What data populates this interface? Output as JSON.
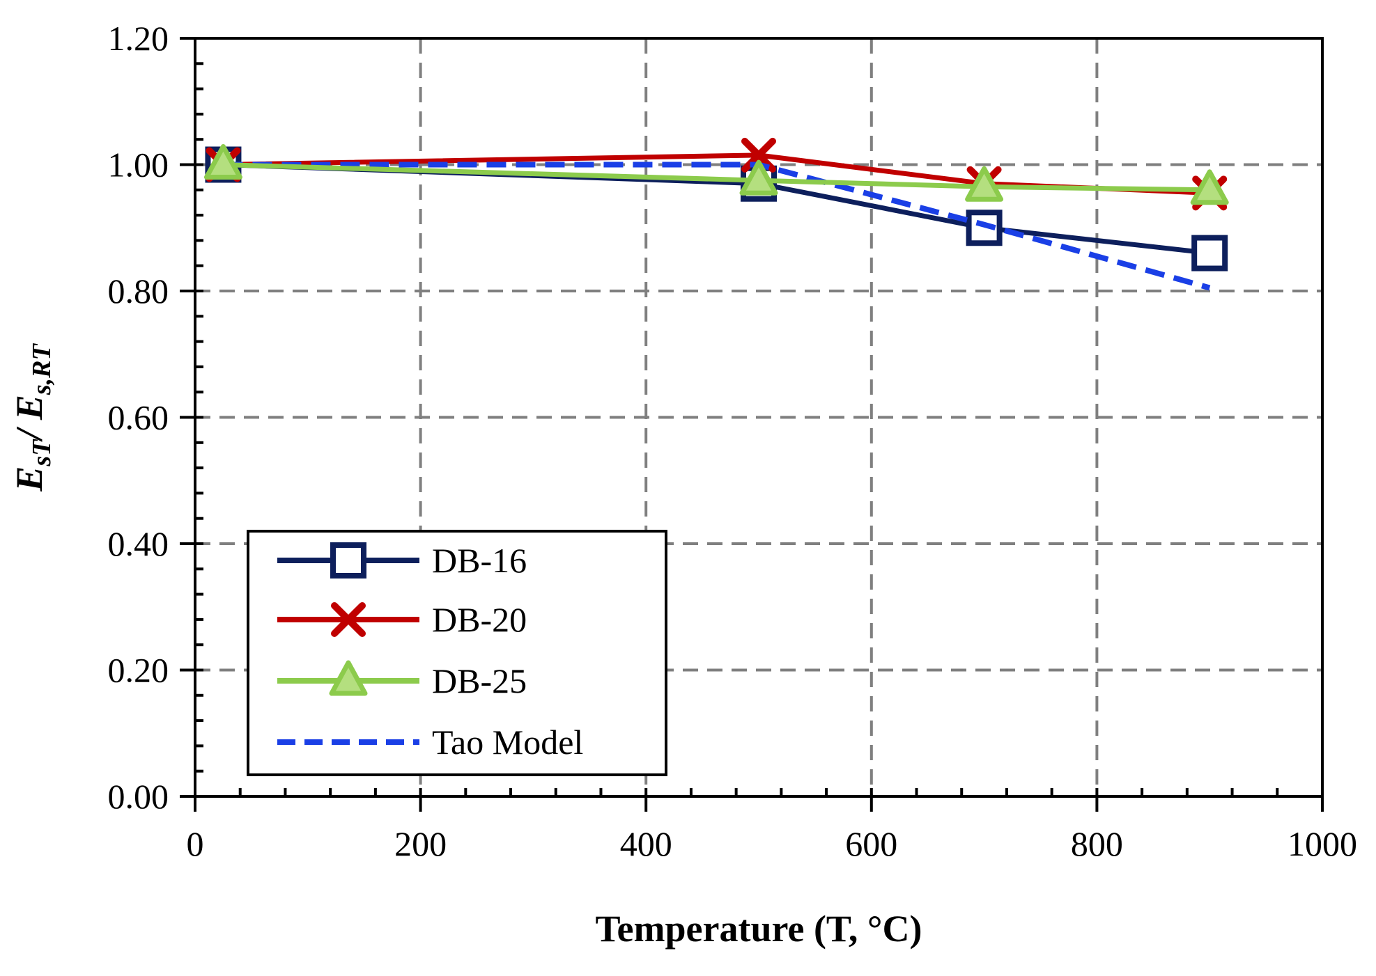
{
  "chart_data": {
    "type": "line",
    "title": "",
    "xlabel": "Temperature (T, °C)",
    "ylabel": {
      "main": "E",
      "sub1": "sT",
      "slash": "/ E",
      "sub2": "s,RT"
    },
    "xlim": [
      0,
      1000
    ],
    "ylim": [
      0,
      1.2
    ],
    "x_ticks": [
      0,
      200,
      400,
      600,
      800,
      1000
    ],
    "x_tick_labels": [
      "0",
      "200",
      "400",
      "600",
      "800",
      "1000"
    ],
    "y_ticks": [
      0,
      0.2,
      0.4,
      0.6,
      0.8,
      1.0,
      1.2
    ],
    "y_tick_labels": [
      "0.00",
      "0.20",
      "0.40",
      "0.60",
      "0.80",
      "1.00",
      "1.20"
    ],
    "x_minor_step": 40,
    "y_minor_step": 0.04,
    "grid": true,
    "legend_position": "bottom-left",
    "series": [
      {
        "name": "DB-16",
        "color": "#0d1f5c",
        "line_style": "solid",
        "marker": "square",
        "x": [
          25,
          500,
          700,
          900
        ],
        "y": [
          1.0,
          0.97,
          0.9,
          0.86
        ]
      },
      {
        "name": "DB-20",
        "color": "#c00000",
        "line_style": "solid",
        "marker": "x",
        "x": [
          25,
          500,
          700,
          900
        ],
        "y": [
          1.0,
          1.015,
          0.97,
          0.955
        ]
      },
      {
        "name": "DB-25",
        "color": "#8ccb4c",
        "line_style": "solid",
        "marker": "triangle",
        "x": [
          25,
          500,
          700,
          900
        ],
        "y": [
          1.0,
          0.975,
          0.965,
          0.96
        ]
      },
      {
        "name": "Tao Model",
        "color": "#1a3fe6",
        "line_style": "dashed",
        "marker": "none",
        "x": [
          25,
          500,
          700,
          900
        ],
        "y": [
          1.0,
          1.0,
          0.905,
          0.805
        ]
      }
    ]
  }
}
